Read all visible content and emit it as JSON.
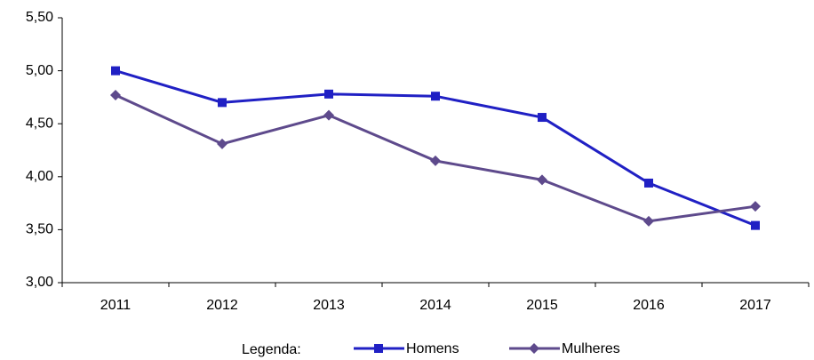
{
  "chart_data": {
    "type": "line",
    "categories": [
      "2011",
      "2012",
      "2013",
      "2014",
      "2015",
      "2016",
      "2017"
    ],
    "series": [
      {
        "name": "Homens",
        "color": "#2020c4",
        "marker": "square",
        "values": [
          5.0,
          4.7,
          4.78,
          4.76,
          4.56,
          3.94,
          3.54
        ]
      },
      {
        "name": "Mulheres",
        "color": "#5e4a8c",
        "marker": "diamond",
        "values": [
          4.77,
          4.31,
          4.58,
          4.15,
          3.97,
          3.58,
          3.72
        ]
      }
    ],
    "ylim": [
      3.0,
      5.5
    ],
    "yticks": [
      {
        "value": 3.0,
        "label": "3,00"
      },
      {
        "value": 3.5,
        "label": "3,50"
      },
      {
        "value": 4.0,
        "label": "4,00"
      },
      {
        "value": 4.5,
        "label": "4,50"
      },
      {
        "value": 5.0,
        "label": "5,00"
      },
      {
        "value": 5.5,
        "label": "5,50"
      }
    ],
    "grid": false,
    "legend_title": "Legenda:",
    "legend": "bottom"
  }
}
